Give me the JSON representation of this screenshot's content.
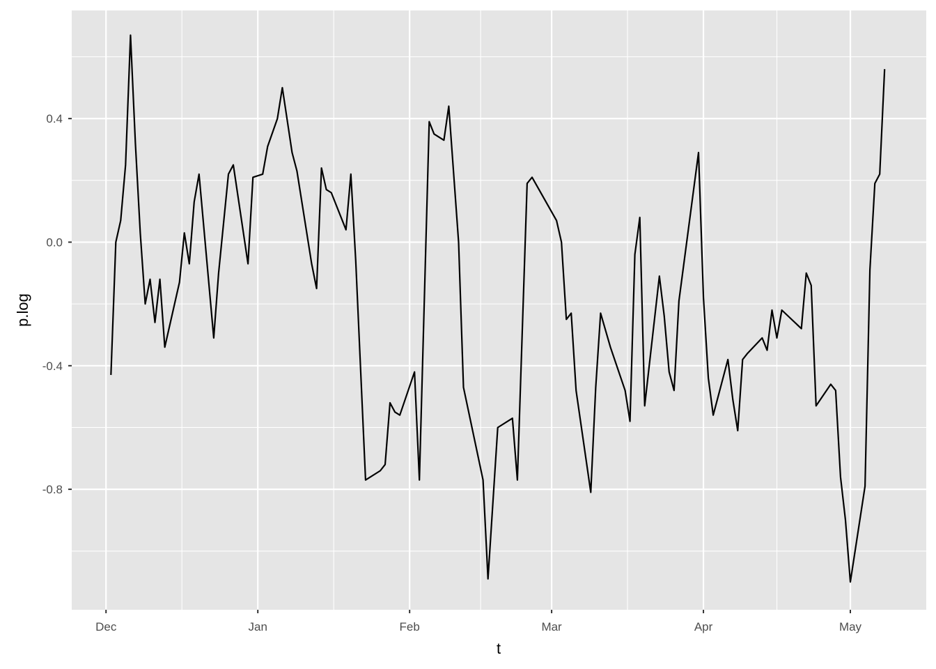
{
  "chart_data": {
    "type": "line",
    "title": "",
    "xlabel": "t",
    "ylabel": "p.log",
    "x_ticks": [
      "Dec",
      "Jan",
      "Feb",
      "Mar",
      "Apr",
      "May"
    ],
    "y_ticks": [
      "-0.8",
      "-0.4",
      "0.0",
      "0.4"
    ],
    "y_tick_values": [
      -0.8,
      -0.4,
      0.0,
      0.4
    ],
    "ylim": [
      -1.19,
      0.75
    ],
    "xlim": [
      "Nov 24",
      "May 16"
    ],
    "grid": true,
    "background": "#e5e5e5",
    "line_color": "#000000",
    "series": [
      {
        "x": [
          "Dec 2",
          "Dec 3",
          "Dec 4",
          "Dec 5",
          "Dec 6",
          "Dec 7",
          "Dec 8",
          "Dec 9",
          "Dec 10",
          "Dec 11",
          "Dec 12",
          "Dec 13",
          "Dec 16",
          "Dec 17",
          "Dec 18",
          "Dec 19",
          "Dec 20",
          "Dec 23",
          "Dec 24",
          "Dec 26",
          "Dec 27",
          "Dec 30",
          "Dec 31",
          "Jan 2",
          "Jan 3",
          "Jan 5",
          "Jan 6",
          "Jan 8",
          "Jan 9",
          "Jan 12",
          "Jan 13",
          "Jan 14",
          "Jan 15",
          "Jan 16",
          "Jan 19",
          "Jan 20",
          "Jan 21",
          "Jan 23",
          "Jan 26",
          "Jan 27",
          "Jan 28",
          "Jan 29",
          "Jan 30",
          "Feb 2",
          "Feb 3",
          "Feb 5",
          "Feb 6",
          "Feb 8",
          "Feb 9",
          "Feb 11",
          "Feb 12",
          "Feb 16",
          "Feb 17",
          "Feb 19",
          "Feb 22",
          "Feb 23",
          "Feb 25",
          "Feb 26",
          "Mar 2",
          "Mar 3",
          "Mar 4",
          "Mar 5",
          "Mar 6",
          "Mar 9",
          "Mar 10",
          "Mar 11",
          "Mar 13",
          "Mar 16",
          "Mar 17",
          "Mar 18",
          "Mar 19",
          "Mar 20",
          "Mar 23",
          "Mar 24",
          "Mar 25",
          "Mar 26",
          "Mar 27",
          "Mar 31",
          "Apr 1",
          "Apr 2",
          "Apr 3",
          "Apr 6",
          "Apr 7",
          "Apr 8",
          "Apr 9",
          "Apr 10",
          "Apr 13",
          "Apr 14",
          "Apr 15",
          "Apr 16",
          "Apr 17",
          "Apr 21",
          "Apr 22",
          "Apr 23",
          "Apr 24",
          "Apr 27",
          "Apr 28",
          "Apr 29",
          "Apr 30",
          "May 1",
          "May 4",
          "May 5",
          "May 6",
          "May 7",
          "May 8"
        ],
        "y": [
          -0.43,
          0.0,
          0.07,
          0.25,
          0.67,
          0.32,
          0.03,
          -0.2,
          -0.12,
          -0.26,
          -0.12,
          -0.34,
          -0.13,
          0.03,
          -0.07,
          0.13,
          0.22,
          -0.31,
          -0.1,
          0.22,
          0.25,
          -0.07,
          0.21,
          0.22,
          0.31,
          0.4,
          0.5,
          0.29,
          0.23,
          -0.07,
          -0.15,
          0.24,
          0.17,
          0.16,
          0.04,
          0.22,
          -0.06,
          -0.77,
          -0.74,
          -0.72,
          -0.52,
          -0.55,
          -0.56,
          -0.42,
          -0.77,
          0.39,
          0.35,
          0.33,
          0.44,
          0.0,
          -0.47,
          -0.77,
          -1.09,
          -0.6,
          -0.57,
          -0.77,
          0.19,
          0.21,
          0.07,
          0.0,
          -0.25,
          -0.23,
          -0.48,
          -0.81,
          -0.47,
          -0.23,
          -0.34,
          -0.48,
          -0.58,
          -0.04,
          0.08,
          -0.53,
          -0.11,
          -0.24,
          -0.42,
          -0.48,
          -0.19,
          0.29,
          -0.18,
          -0.44,
          -0.56,
          -0.38,
          -0.51,
          -0.61,
          -0.38,
          -0.36,
          -0.31,
          -0.35,
          -0.22,
          -0.31,
          -0.22,
          -0.28,
          -0.1,
          -0.14,
          -0.53,
          -0.46,
          -0.48,
          -0.76,
          -0.9,
          -1.1,
          -0.79,
          -0.09,
          0.19,
          0.22,
          0.56
        ]
      }
    ]
  }
}
